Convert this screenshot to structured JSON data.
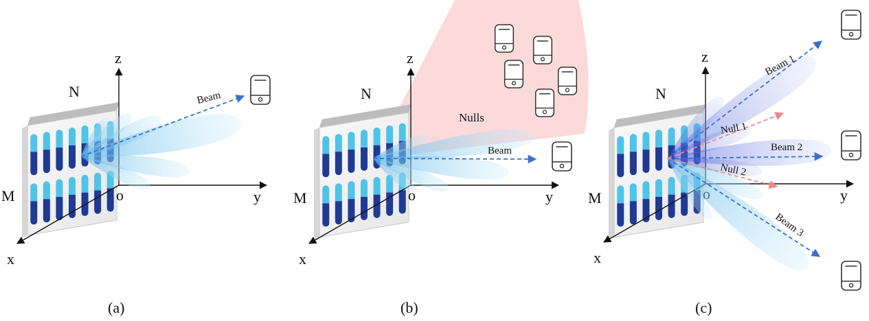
{
  "panels": [
    {
      "id": "a",
      "caption": "(a)",
      "axes": {
        "x": "x",
        "y": "y",
        "z": "z",
        "origin": "o"
      },
      "array": {
        "cols": "N",
        "rows": "M"
      },
      "beams": [
        {
          "label": "Beam"
        }
      ],
      "nulls": [],
      "sector_label": "",
      "devices": 1
    },
    {
      "id": "b",
      "caption": "(b)",
      "axes": {
        "x": "x",
        "y": "y",
        "z": "z",
        "origin": "o"
      },
      "array": {
        "cols": "N",
        "rows": "M"
      },
      "beams": [
        {
          "label": "Beam"
        }
      ],
      "nulls": [],
      "sector_label": "Nulls",
      "devices": 6
    },
    {
      "id": "c",
      "caption": "(c)",
      "axes": {
        "x": "x",
        "y": "y",
        "z": "z",
        "origin": "o"
      },
      "array": {
        "cols": "N",
        "rows": "M"
      },
      "beams": [
        {
          "label": "Beam 1"
        },
        {
          "label": "Beam 2"
        },
        {
          "label": "Beam 3"
        }
      ],
      "nulls": [
        {
          "label": "Null 1"
        },
        {
          "label": "Null 2"
        }
      ],
      "sector_label": "",
      "devices": 3
    }
  ],
  "colors": {
    "beam_light": "#8fd3f0",
    "beam_dark": "#3b5bd6",
    "beam_arrow": "#3a6fd0",
    "null_arrow": "#e88a8a",
    "null_sector": "#fbd3d3",
    "element_light": "#4fc3e8",
    "element_dark": "#1f3a93",
    "panel_face": "#f4f4f4",
    "panel_edge": "#c8c8c8",
    "axis": "#111111",
    "device": "#333333"
  }
}
